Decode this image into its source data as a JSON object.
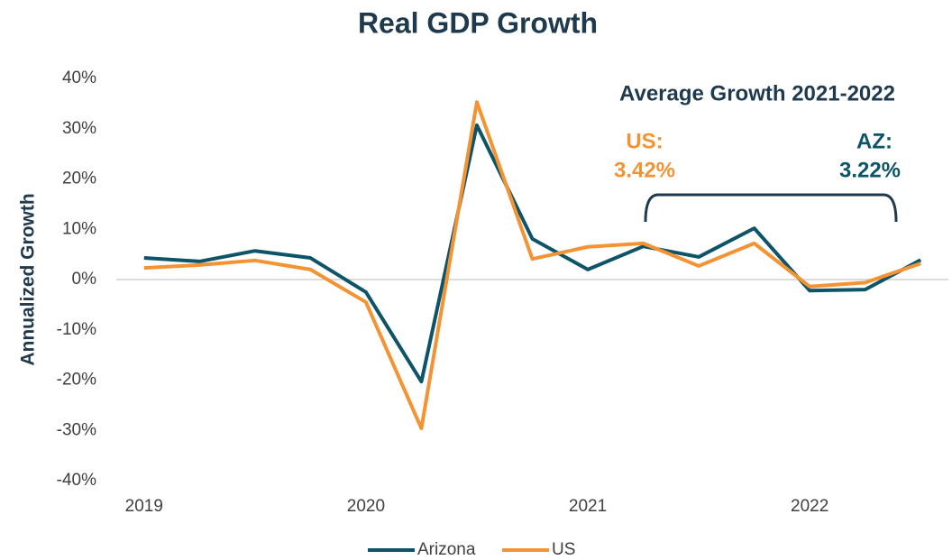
{
  "chart_data": {
    "type": "line",
    "title": "Real GDP Growth",
    "y_label": "Annualized Growth",
    "categories": [
      "2019",
      null,
      null,
      null,
      "2020",
      null,
      null,
      null,
      "2021",
      null,
      null,
      null,
      "2022",
      null,
      null
    ],
    "series": [
      {
        "name": "Arizona",
        "color": "#0d5468",
        "values": [
          4.3,
          3.6,
          5.7,
          4.3,
          -2.5,
          -20.3,
          30.7,
          8.1,
          2.0,
          6.6,
          4.5,
          10.2,
          -2.2,
          -2.0,
          3.9
        ]
      },
      {
        "name": "US",
        "color": "#f39333",
        "values": [
          2.3,
          2.9,
          3.8,
          2.0,
          -4.5,
          -29.6,
          35.3,
          4.1,
          6.5,
          7.2,
          2.7,
          7.2,
          -1.4,
          -0.6,
          3.2
        ]
      }
    ],
    "ylim": [
      -40,
      40
    ],
    "yticks": [
      {
        "value": -40,
        "label": "-40%"
      },
      {
        "value": -30,
        "label": "-30%"
      },
      {
        "value": -20,
        "label": "-20%"
      },
      {
        "value": -10,
        "label": "-10%"
      },
      {
        "value": 0,
        "label": "0%"
      },
      {
        "value": 10,
        "label": "10%"
      },
      {
        "value": 20,
        "label": "20%"
      },
      {
        "value": 30,
        "label": "30%"
      },
      {
        "value": 40,
        "label": "40%"
      }
    ],
    "zero_line": true,
    "legend": "bottom",
    "annotations": [
      "Average Growth 2021-2022",
      "US:",
      "3.42%",
      "AZ:",
      "3.22%"
    ]
  }
}
